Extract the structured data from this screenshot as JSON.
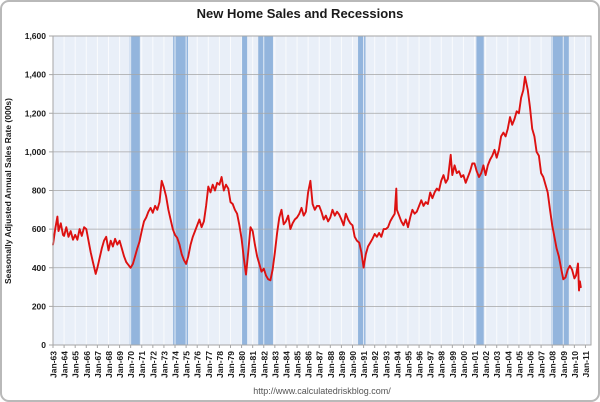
{
  "page": {
    "title": "New Home Sales and Recessions",
    "source_url": "http://www.calculatedriskblog.com/"
  },
  "colors": {
    "line": "#dd1111",
    "recession_band": "#93b5dd",
    "plot_background": "#e9eff8",
    "horizontal_grid": "#a6a6a6",
    "vertical_grid": "#ffffff",
    "plot_border": "#a6a6a6",
    "text": "#1a1a1a",
    "url_text": "#555555"
  },
  "chart_data": {
    "type": "line",
    "title": "New Home Sales and Recessions",
    "ylabel": "Seasonally Adjusted Annual Sales Rate (000s)",
    "xlabel": "",
    "ylim": [
      0,
      1600
    ],
    "xlim": [
      1963,
      2011.5
    ],
    "grid": true,
    "legend_position": "none",
    "y_axis": {
      "tick_values": [
        0,
        200,
        400,
        600,
        800,
        1000,
        1200,
        1400,
        1600
      ],
      "tick_labels": [
        "0",
        "200",
        "400",
        "600",
        "800",
        "1,000",
        "1,200",
        "1,400",
        "1,600"
      ]
    },
    "x_axis": {
      "tick_labels": [
        "Jan-63",
        "Jan-64",
        "Jan-65",
        "Jan-66",
        "Jan-67",
        "Jan-68",
        "Jan-69",
        "Jan-70",
        "Jan-71",
        "Jan-72",
        "Jan-73",
        "Jan-74",
        "Jan-75",
        "Jan-76",
        "Jan-77",
        "Jan-78",
        "Jan-79",
        "Jan-80",
        "Jan-81",
        "Jan-82",
        "Jan-83",
        "Jan-84",
        "Jan-85",
        "Jan-86",
        "Jan-87",
        "Jan-88",
        "Jan-89",
        "Jan-90",
        "Jan-91",
        "Jan-92",
        "Jan-93",
        "Jan-94",
        "Jan-95",
        "Jan-96",
        "Jan-97",
        "Jan-98",
        "Jan-99",
        "Jan-00",
        "Jan-01",
        "Jan-02",
        "Jan-03",
        "Jan-04",
        "Jan-05",
        "Jan-06",
        "Jan-07",
        "Jan-08",
        "Jan-09",
        "Jan-10",
        "Jan-11"
      ],
      "tick_years": [
        1963,
        1964,
        1965,
        1966,
        1967,
        1968,
        1969,
        1970,
        1971,
        1972,
        1973,
        1974,
        1975,
        1976,
        1977,
        1978,
        1979,
        1980,
        1981,
        1982,
        1983,
        1984,
        1985,
        1986,
        1987,
        1988,
        1989,
        1990,
        1991,
        1992,
        1993,
        1994,
        1995,
        1996,
        1997,
        1998,
        1999,
        2000,
        2001,
        2002,
        2003,
        2004,
        2005,
        2006,
        2007,
        2008,
        2009,
        2010,
        2011
      ]
    },
    "recessions": {
      "label": "Recessions",
      "bands": [
        [
          1969.92,
          1970.83
        ],
        [
          1973.83,
          1975.17
        ],
        [
          1980.0,
          1980.5
        ],
        [
          1981.5,
          1982.83
        ],
        [
          1990.5,
          1991.17
        ],
        [
          2001.17,
          2001.83
        ],
        [
          2007.92,
          2009.5
        ]
      ]
    },
    "series": [
      {
        "name": "New Home Sales",
        "points": [
          [
            1963.0,
            520
          ],
          [
            1963.2,
            600
          ],
          [
            1963.4,
            665
          ],
          [
            1963.5,
            590
          ],
          [
            1963.7,
            630
          ],
          [
            1963.9,
            570
          ],
          [
            1964.0,
            565
          ],
          [
            1964.2,
            610
          ],
          [
            1964.4,
            560
          ],
          [
            1964.6,
            590
          ],
          [
            1964.8,
            545
          ],
          [
            1965.0,
            570
          ],
          [
            1965.2,
            545
          ],
          [
            1965.4,
            600
          ],
          [
            1965.6,
            565
          ],
          [
            1965.8,
            610
          ],
          [
            1966.0,
            600
          ],
          [
            1966.2,
            540
          ],
          [
            1966.4,
            480
          ],
          [
            1966.6,
            430
          ],
          [
            1966.85,
            368
          ],
          [
            1967.0,
            400
          ],
          [
            1967.2,
            450
          ],
          [
            1967.4,
            500
          ],
          [
            1967.6,
            540
          ],
          [
            1967.8,
            560
          ],
          [
            1968.0,
            490
          ],
          [
            1968.2,
            540
          ],
          [
            1968.4,
            510
          ],
          [
            1968.6,
            550
          ],
          [
            1968.8,
            520
          ],
          [
            1969.0,
            540
          ],
          [
            1969.2,
            500
          ],
          [
            1969.4,
            460
          ],
          [
            1969.6,
            430
          ],
          [
            1969.8,
            415
          ],
          [
            1970.0,
            400
          ],
          [
            1970.2,
            420
          ],
          [
            1970.4,
            460
          ],
          [
            1970.6,
            500
          ],
          [
            1970.8,
            535
          ],
          [
            1971.0,
            590
          ],
          [
            1971.2,
            640
          ],
          [
            1971.4,
            660
          ],
          [
            1971.6,
            690
          ],
          [
            1971.8,
            710
          ],
          [
            1972.0,
            685
          ],
          [
            1972.2,
            720
          ],
          [
            1972.4,
            700
          ],
          [
            1972.6,
            740
          ],
          [
            1972.8,
            850
          ],
          [
            1973.0,
            815
          ],
          [
            1973.2,
            770
          ],
          [
            1973.4,
            700
          ],
          [
            1973.6,
            650
          ],
          [
            1973.8,
            600
          ],
          [
            1974.0,
            570
          ],
          [
            1974.2,
            555
          ],
          [
            1974.4,
            520
          ],
          [
            1974.6,
            470
          ],
          [
            1974.8,
            440
          ],
          [
            1975.0,
            420
          ],
          [
            1975.2,
            460
          ],
          [
            1975.4,
            520
          ],
          [
            1975.6,
            560
          ],
          [
            1975.8,
            590
          ],
          [
            1976.0,
            620
          ],
          [
            1976.2,
            650
          ],
          [
            1976.4,
            610
          ],
          [
            1976.6,
            640
          ],
          [
            1976.8,
            720
          ],
          [
            1977.0,
            820
          ],
          [
            1977.2,
            790
          ],
          [
            1977.4,
            830
          ],
          [
            1977.6,
            800
          ],
          [
            1977.8,
            840
          ],
          [
            1978.0,
            830
          ],
          [
            1978.2,
            870
          ],
          [
            1978.4,
            800
          ],
          [
            1978.6,
            830
          ],
          [
            1978.8,
            810
          ],
          [
            1979.0,
            740
          ],
          [
            1979.2,
            730
          ],
          [
            1979.4,
            700
          ],
          [
            1979.6,
            680
          ],
          [
            1979.8,
            620
          ],
          [
            1980.0,
            550
          ],
          [
            1980.2,
            450
          ],
          [
            1980.4,
            365
          ],
          [
            1980.6,
            480
          ],
          [
            1980.8,
            610
          ],
          [
            1981.0,
            590
          ],
          [
            1981.2,
            520
          ],
          [
            1981.4,
            460
          ],
          [
            1981.6,
            420
          ],
          [
            1981.8,
            380
          ],
          [
            1982.0,
            395
          ],
          [
            1982.2,
            360
          ],
          [
            1982.4,
            340
          ],
          [
            1982.6,
            335
          ],
          [
            1982.8,
            390
          ],
          [
            1983.0,
            480
          ],
          [
            1983.2,
            580
          ],
          [
            1983.4,
            660
          ],
          [
            1983.6,
            700
          ],
          [
            1983.8,
            625
          ],
          [
            1984.0,
            640
          ],
          [
            1984.2,
            670
          ],
          [
            1984.4,
            600
          ],
          [
            1984.6,
            630
          ],
          [
            1984.8,
            650
          ],
          [
            1985.0,
            660
          ],
          [
            1985.2,
            680
          ],
          [
            1985.4,
            710
          ],
          [
            1985.6,
            670
          ],
          [
            1985.8,
            690
          ],
          [
            1986.0,
            790
          ],
          [
            1986.2,
            850
          ],
          [
            1986.4,
            730
          ],
          [
            1986.6,
            700
          ],
          [
            1986.8,
            720
          ],
          [
            1987.0,
            720
          ],
          [
            1987.2,
            690
          ],
          [
            1987.4,
            650
          ],
          [
            1987.6,
            670
          ],
          [
            1987.8,
            640
          ],
          [
            1988.0,
            660
          ],
          [
            1988.2,
            700
          ],
          [
            1988.4,
            670
          ],
          [
            1988.6,
            690
          ],
          [
            1988.8,
            675
          ],
          [
            1989.0,
            650
          ],
          [
            1989.2,
            620
          ],
          [
            1989.4,
            680
          ],
          [
            1989.6,
            650
          ],
          [
            1989.8,
            630
          ],
          [
            1990.0,
            620
          ],
          [
            1990.2,
            560
          ],
          [
            1990.4,
            540
          ],
          [
            1990.6,
            530
          ],
          [
            1990.8,
            480
          ],
          [
            1991.0,
            401
          ],
          [
            1991.2,
            470
          ],
          [
            1991.4,
            510
          ],
          [
            1991.6,
            530
          ],
          [
            1991.8,
            550
          ],
          [
            1992.0,
            575
          ],
          [
            1992.2,
            560
          ],
          [
            1992.4,
            580
          ],
          [
            1992.6,
            560
          ],
          [
            1992.8,
            600
          ],
          [
            1993.0,
            600
          ],
          [
            1993.2,
            610
          ],
          [
            1993.4,
            640
          ],
          [
            1993.6,
            660
          ],
          [
            1993.8,
            680
          ],
          [
            1993.95,
            810
          ],
          [
            1994.0,
            700
          ],
          [
            1994.2,
            670
          ],
          [
            1994.4,
            640
          ],
          [
            1994.6,
            620
          ],
          [
            1994.8,
            650
          ],
          [
            1995.0,
            610
          ],
          [
            1995.2,
            660
          ],
          [
            1995.4,
            700
          ],
          [
            1995.6,
            680
          ],
          [
            1995.8,
            690
          ],
          [
            1996.0,
            720
          ],
          [
            1996.2,
            750
          ],
          [
            1996.4,
            720
          ],
          [
            1996.6,
            740
          ],
          [
            1996.8,
            730
          ],
          [
            1997.0,
            790
          ],
          [
            1997.2,
            760
          ],
          [
            1997.4,
            790
          ],
          [
            1997.6,
            810
          ],
          [
            1997.8,
            800
          ],
          [
            1998.0,
            850
          ],
          [
            1998.2,
            880
          ],
          [
            1998.4,
            840
          ],
          [
            1998.6,
            860
          ],
          [
            1998.85,
            985
          ],
          [
            1999.0,
            880
          ],
          [
            1999.2,
            930
          ],
          [
            1999.4,
            890
          ],
          [
            1999.6,
            900
          ],
          [
            1999.8,
            870
          ],
          [
            2000.0,
            880
          ],
          [
            2000.2,
            840
          ],
          [
            2000.4,
            870
          ],
          [
            2000.6,
            900
          ],
          [
            2000.8,
            940
          ],
          [
            2001.0,
            940
          ],
          [
            2001.2,
            900
          ],
          [
            2001.4,
            870
          ],
          [
            2001.6,
            890
          ],
          [
            2001.8,
            930
          ],
          [
            2002.0,
            880
          ],
          [
            2002.2,
            930
          ],
          [
            2002.4,
            960
          ],
          [
            2002.6,
            980
          ],
          [
            2002.8,
            1010
          ],
          [
            2003.0,
            970
          ],
          [
            2003.2,
            1010
          ],
          [
            2003.4,
            1080
          ],
          [
            2003.6,
            1100
          ],
          [
            2003.8,
            1080
          ],
          [
            2004.0,
            1120
          ],
          [
            2004.2,
            1180
          ],
          [
            2004.4,
            1140
          ],
          [
            2004.6,
            1170
          ],
          [
            2004.8,
            1210
          ],
          [
            2005.0,
            1200
          ],
          [
            2005.2,
            1280
          ],
          [
            2005.4,
            1320
          ],
          [
            2005.55,
            1389
          ],
          [
            2005.8,
            1320
          ],
          [
            2006.0,
            1230
          ],
          [
            2006.2,
            1120
          ],
          [
            2006.4,
            1080
          ],
          [
            2006.6,
            1000
          ],
          [
            2006.8,
            980
          ],
          [
            2007.0,
            890
          ],
          [
            2007.2,
            870
          ],
          [
            2007.4,
            830
          ],
          [
            2007.6,
            790
          ],
          [
            2007.8,
            700
          ],
          [
            2008.0,
            620
          ],
          [
            2008.2,
            560
          ],
          [
            2008.4,
            500
          ],
          [
            2008.6,
            460
          ],
          [
            2008.8,
            400
          ],
          [
            2009.0,
            340
          ],
          [
            2009.2,
            350
          ],
          [
            2009.4,
            390
          ],
          [
            2009.6,
            410
          ],
          [
            2009.8,
            390
          ],
          [
            2010.0,
            345
          ],
          [
            2010.15,
            360
          ],
          [
            2010.33,
            422
          ],
          [
            2010.42,
            282
          ],
          [
            2010.5,
            330
          ],
          [
            2010.58,
            300
          ]
        ]
      }
    ]
  }
}
